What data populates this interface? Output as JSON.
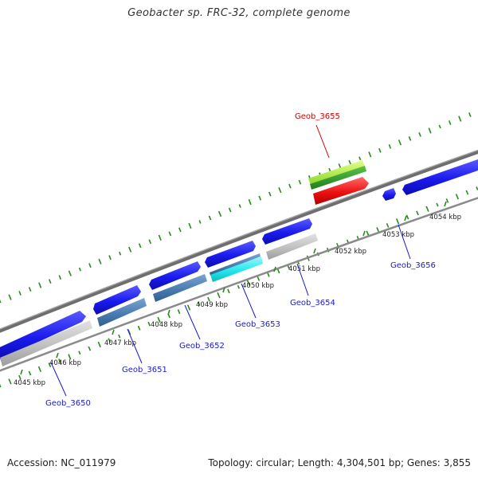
{
  "title": "Geobacter sp. FRC-32, complete genome",
  "footer": {
    "accession": "Accession: NC_011979",
    "summary": "Topology: circular; Length: 4,304,501 bp; Genes: 3,855"
  },
  "colors": {
    "background": "#ffffff",
    "backbone": "#7f7f7f",
    "gc_ticks": "#2a8a1f",
    "forward_gene": "#1a1aee",
    "steel_gene": "#4a7cb0",
    "grey_gene": "#b8b8b8",
    "cyan_gene": "#22e8ee",
    "highlight_cds": "#ee1111",
    "highlight_feature": "#7ad628",
    "gene_label": "#1a1acc",
    "highlight_label": "#d40000"
  },
  "scale_labels": [
    "4045 kbp",
    "4046 kbp",
    "4047 kbp",
    "4048 kbp",
    "4049 kbp",
    "4050 kbp",
    "4051 kbp",
    "4052 kbp",
    "4053 kbp",
    "4054 kbp"
  ],
  "genes": [
    {
      "label": "Geob_3650",
      "style": "gene"
    },
    {
      "label": "Geob_3651",
      "style": "gene"
    },
    {
      "label": "Geob_3652",
      "style": "gene"
    },
    {
      "label": "Geob_3653",
      "style": "gene"
    },
    {
      "label": "Geob_3654",
      "style": "gene"
    },
    {
      "label": "Geob_3655",
      "style": "highlight"
    },
    {
      "label": "Geob_3656",
      "style": "gene"
    }
  ]
}
